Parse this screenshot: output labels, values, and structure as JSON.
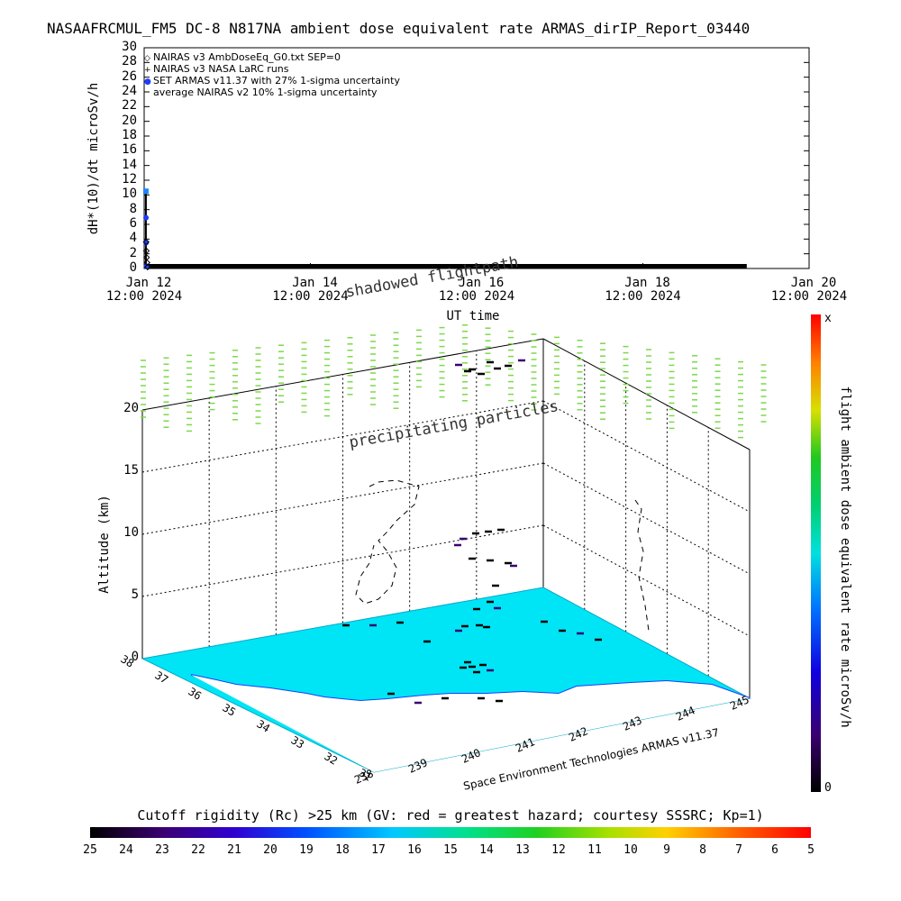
{
  "title": "NASAAFRCMUL_FM5 DC-8   N817NA ambient dose equivalent rate ARMAS_dirIP_Report_03440",
  "top_plot": {
    "ylabel": "dH*(10)/dt microSv/h",
    "xlabel": "UT time",
    "legend": [
      {
        "marker": "◇",
        "label": "NAIRAS v3 AmbDoseEq_G0.txt SEP=0"
      },
      {
        "marker": "+",
        "label": "NAIRAS v3 NASA LaRC runs"
      },
      {
        "marker": "●",
        "label": "SET ARMAS v11.37 with 27% 1-sigma uncertainty"
      },
      {
        "marker": "",
        "label": "average NAIRAS v2 10% 1-sigma uncertainty"
      }
    ],
    "x_ticks": [
      {
        "line1": "Jan 12",
        "line2": "12:00 2024"
      },
      {
        "line1": "Jan 14",
        "line2": "12:00 2024"
      },
      {
        "line1": "Jan 16",
        "line2": "12:00 2024"
      },
      {
        "line1": "Jan 18",
        "line2": "12:00 2024"
      },
      {
        "line1": "Jan 20",
        "line2": "12:00 2024"
      }
    ],
    "y_ticks": [
      "0",
      "2",
      "4",
      "6",
      "8",
      "10",
      "12",
      "14",
      "16",
      "18",
      "20",
      "22",
      "24",
      "26",
      "28",
      "30"
    ]
  },
  "chart_data": [
    {
      "type": "scatter",
      "xlabel": "UT time",
      "ylabel": "dH*(10)/dt microSv/h",
      "ylim": [
        0,
        30
      ],
      "x_range": [
        "2024-01-12 12:00",
        "2024-01-20 12:00"
      ],
      "series": [
        {
          "name": "SET ARMAS v11.37 with 27% 1-sigma uncertainty",
          "x": [
            "2024-01-12 12:30",
            "2024-01-12 12:32",
            "2024-01-12 12:34",
            "2024-01-12 12:40"
          ],
          "values": [
            10.5,
            6.9,
            3.5,
            0.3
          ]
        },
        {
          "name": "NAIRAS v3 AmbDoseEq_G0.txt SEP=0",
          "x": [
            "2024-01-12 12:35",
            "2024-01-12 12:38",
            "2024-01-12 12:42",
            "2024-01-12 12:50",
            "2024-01-12 13:00"
          ],
          "values": [
            3.6,
            2.4,
            1.5,
            0.8,
            0.2
          ]
        }
      ],
      "baseline": {
        "x_start": "2024-01-12 12:00",
        "x_end": "2024-01-19 18:00",
        "value": 0
      }
    },
    {
      "type": "heatmap",
      "annotation_shadowed": "shadowed flightpath",
      "annotation_precip": "precipitating particles",
      "zlabel": "Altitude (km)",
      "z_ticks": [
        "0",
        "5",
        "10",
        "15",
        "20"
      ],
      "lat_ticks": [
        "38",
        "37",
        "36",
        "35",
        "34",
        "33",
        "32",
        "31"
      ],
      "lon_ticks": [
        "238",
        "239",
        "240",
        "241",
        "242",
        "243",
        "244",
        "245"
      ],
      "credit": "Space Environment Technologies ARMAS v11.37",
      "colorbar_label": "flight ambient dose equivalent rate microSv/h",
      "colorbar_top": "x",
      "colorbar_bottom": "0"
    }
  ],
  "bottom_bar": {
    "label": "Cutoff rigidity (Rc) >25 km (GV: red = greatest hazard; courtesy SSSRC; Kp=1)",
    "ticks": [
      "25",
      "24",
      "23",
      "22",
      "21",
      "20",
      "19",
      "18",
      "17",
      "16",
      "15",
      "14",
      "13",
      "12",
      "11",
      "10",
      "9",
      "8",
      "7",
      "6",
      "5"
    ]
  },
  "colors": {
    "surface": "#00e5f5",
    "sky_marks": "#7cd94a",
    "armas_point": "#1e3cff",
    "armas_top": "#1a86ff",
    "colorbar": [
      "#000000",
      "#3a0070",
      "#3b00c8",
      "#0050ff",
      "#00c8ff",
      "#00e08a",
      "#20d020",
      "#c8e000",
      "#ffc800",
      "#ff5000",
      "#ff0000"
    ]
  }
}
